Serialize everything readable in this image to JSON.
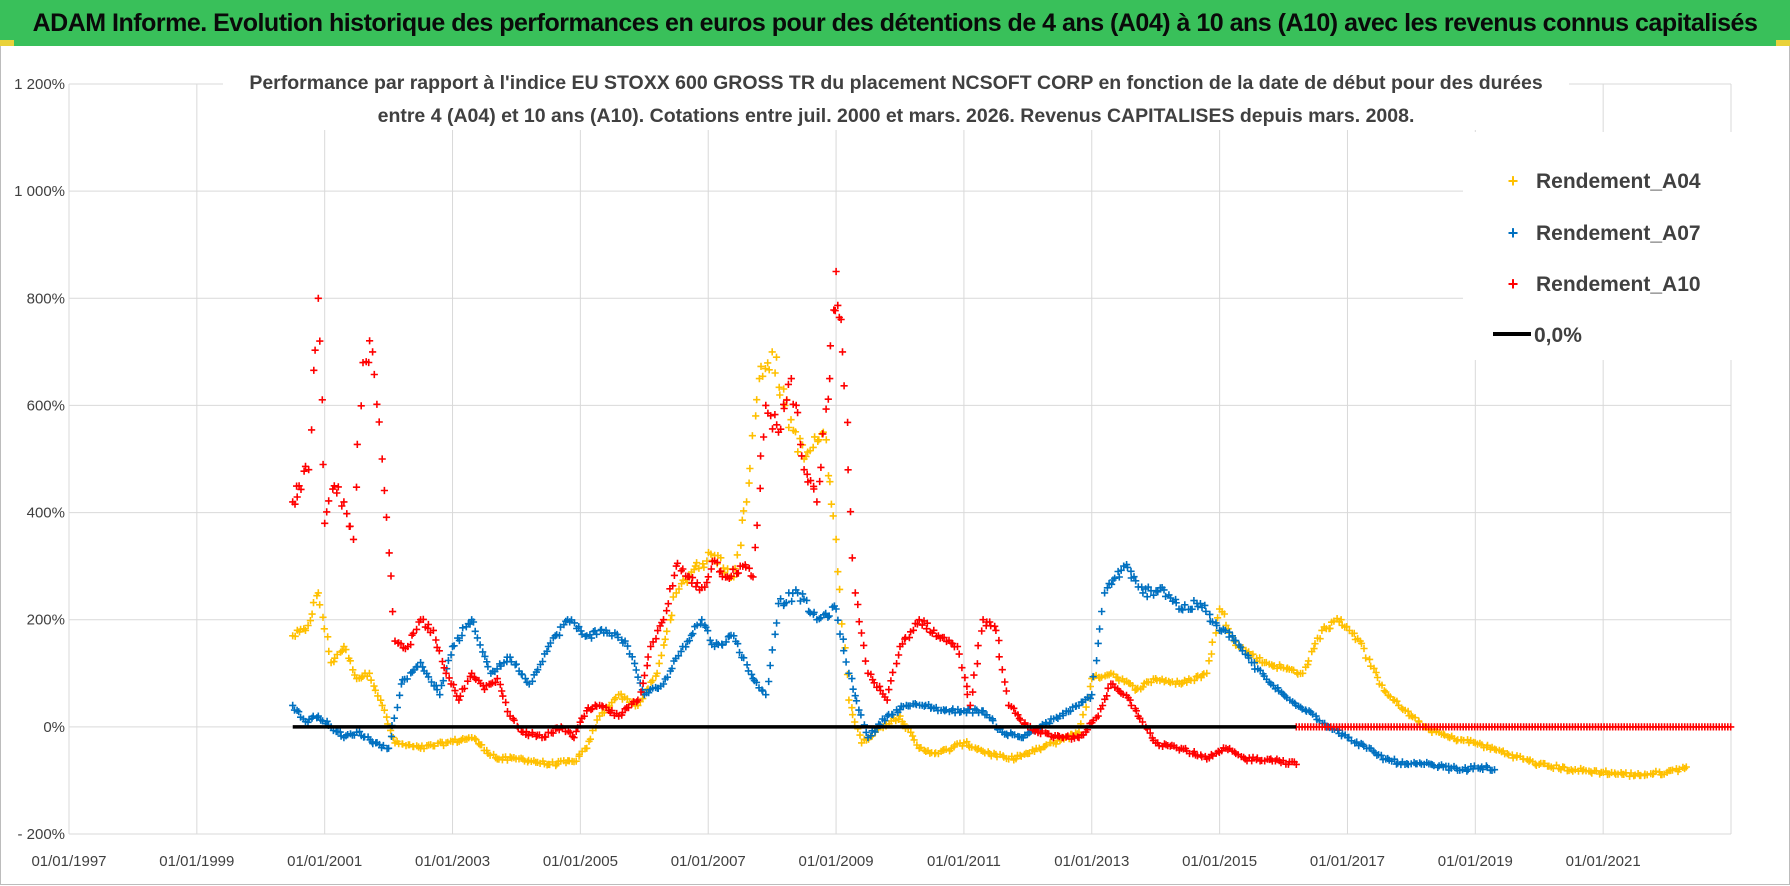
{
  "header": {
    "title": "ADAM Informe. Evolution historique des performances en euros pour des détentions de 4 ans (A04) à 10 ans (A10) avec les revenus connus capitalisés"
  },
  "colors": {
    "banner": "#39c05a",
    "A04": "#ffc000",
    "A07": "#0070c0",
    "A10": "#ff0000",
    "zero": "#000000",
    "grid": "#d9d9d9"
  },
  "chart_data": {
    "type": "scatter",
    "title_line1": "Performance par rapport à l'indice EU STOXX 600 GROSS TR  du placement NCSOFT CORP en fonction de la date de début pour des durées",
    "title_line2": "entre 4 (A04) et 10 ans (A10). Cotations entre juil. 2000 et mars. 2026. Revenus CAPITALISES depuis mars. 2008.",
    "xlabel": "",
    "ylabel": "",
    "xlim": [
      1997.0,
      2023.0
    ],
    "ylim": [
      -200,
      1200
    ],
    "y_ticks": [
      -200,
      0,
      200,
      400,
      600,
      800,
      1000,
      1200
    ],
    "y_tick_labels": [
      "- 200%",
      "0%",
      "200%",
      "400%",
      "600%",
      "800%",
      "1 000%",
      "1 200%"
    ],
    "x_ticks": [
      1997,
      1999,
      2001,
      2003,
      2005,
      2007,
      2009,
      2011,
      2013,
      2015,
      2017,
      2019,
      2021
    ],
    "x_tick_labels": [
      "01/01/1997",
      "01/01/1999",
      "01/01/2001",
      "01/01/2003",
      "01/01/2005",
      "01/01/2007",
      "01/01/2009",
      "01/01/2011",
      "01/01/2013",
      "01/01/2015",
      "01/01/2017",
      "01/01/2019",
      "01/01/2021"
    ],
    "legend_position": "top-right",
    "series": [
      {
        "name": "Rendement_A04",
        "color": "#ffc000",
        "x": [
          2000.5,
          2000.7,
          2000.9,
          2001.1,
          2001.3,
          2001.5,
          2001.7,
          2001.9,
          2002.1,
          2002.5,
          2002.9,
          2003.3,
          2003.7,
          2004.1,
          2004.5,
          2004.9,
          2005.1,
          2005.3,
          2005.6,
          2005.9,
          2006.2,
          2006.5,
          2006.8,
          2007.1,
          2007.4,
          2007.6,
          2007.8,
          2008.0,
          2008.2,
          2008.5,
          2008.8,
          2009.0,
          2009.2,
          2009.4,
          2009.7,
          2010.0,
          2010.3,
          2010.6,
          2011.0,
          2011.4,
          2011.7,
          2012.0,
          2012.4,
          2012.8,
          2013.0,
          2013.3,
          2013.7,
          2014.0,
          2014.4,
          2014.8,
          2015.0,
          2015.3,
          2015.7,
          2016.0,
          2016.3,
          2016.6,
          2016.9,
          2017.2,
          2017.5,
          2017.8,
          2018.2,
          2018.6,
          2019.0,
          2019.5,
          2020.0,
          2020.5,
          2021.0,
          2021.5,
          2022.0,
          2022.3
        ],
        "y": [
          170,
          180,
          250,
          120,
          150,
          90,
          100,
          40,
          -30,
          -40,
          -30,
          -20,
          -60,
          -60,
          -70,
          -65,
          -40,
          20,
          60,
          40,
          100,
          250,
          300,
          320,
          280,
          420,
          650,
          700,
          600,
          500,
          550,
          350,
          50,
          -30,
          0,
          20,
          -40,
          -50,
          -30,
          -50,
          -60,
          -50,
          -30,
          -10,
          90,
          100,
          70,
          90,
          80,
          100,
          220,
          150,
          120,
          110,
          100,
          180,
          200,
          160,
          80,
          40,
          0,
          -20,
          -30,
          -50,
          -70,
          -80,
          -85,
          -90,
          -85,
          -75
        ]
      },
      {
        "name": "Rendement_A07",
        "color": "#0070c0",
        "x": [
          2000.5,
          2000.7,
          2000.9,
          2001.1,
          2001.3,
          2001.5,
          2001.8,
          2002.0,
          2002.2,
          2002.5,
          2002.8,
          2003.0,
          2003.3,
          2003.6,
          2003.9,
          2004.2,
          2004.5,
          2004.8,
          2005.1,
          2005.4,
          2005.7,
          2006.0,
          2006.3,
          2006.6,
          2006.9,
          2007.1,
          2007.4,
          2007.7,
          2007.9,
          2008.1,
          2008.4,
          2008.7,
          2009.0,
          2009.2,
          2009.5,
          2009.8,
          2010.1,
          2010.4,
          2010.7,
          2011.0,
          2011.3,
          2011.6,
          2011.9,
          2012.2,
          2012.5,
          2012.8,
          2013.0,
          2013.2,
          2013.5,
          2013.8,
          2014.1,
          2014.4,
          2014.7,
          2015.0,
          2015.2,
          2015.5,
          2015.8,
          2016.1,
          2016.4,
          2016.7,
          2017.0,
          2017.3,
          2017.6,
          2017.9,
          2018.2,
          2018.5,
          2018.8,
          2019.1,
          2019.3
        ],
        "y": [
          40,
          10,
          20,
          0,
          -20,
          -10,
          -30,
          -40,
          80,
          120,
          60,
          150,
          200,
          100,
          130,
          80,
          150,
          200,
          170,
          180,
          160,
          60,
          80,
          150,
          200,
          150,
          170,
          90,
          60,
          230,
          250,
          200,
          220,
          100,
          -20,
          20,
          40,
          40,
          30,
          30,
          30,
          -10,
          -20,
          0,
          20,
          40,
          60,
          250,
          300,
          250,
          260,
          220,
          230,
          180,
          170,
          120,
          80,
          50,
          30,
          0,
          -20,
          -40,
          -60,
          -70,
          -70,
          -75,
          -80,
          -75,
          -80
        ]
      },
      {
        "name": "Rendement_A10",
        "color": "#ff0000",
        "x": [
          2000.5,
          2000.6,
          2000.75,
          2000.9,
          2001.0,
          2001.15,
          2001.3,
          2001.45,
          2001.6,
          2001.75,
          2001.9,
          2002.1,
          2002.3,
          2002.5,
          2002.7,
          2002.9,
          2003.1,
          2003.3,
          2003.5,
          2003.7,
          2003.9,
          2004.1,
          2004.4,
          2004.7,
          2004.9,
          2005.1,
          2005.3,
          2005.6,
          2005.9,
          2006.1,
          2006.3,
          2006.5,
          2006.7,
          2006.9,
          2007.1,
          2007.3,
          2007.5,
          2007.7,
          2007.9,
          2008.1,
          2008.3,
          2008.5,
          2008.7,
          2008.9,
          2009.0,
          2009.1,
          2009.3,
          2009.5,
          2009.8,
          2010.0,
          2010.3,
          2010.6,
          2010.9,
          2011.1,
          2011.3,
          2011.5,
          2011.7,
          2012.0,
          2012.4,
          2012.8,
          2013.1,
          2013.3,
          2013.6,
          2014.0,
          2014.4,
          2014.8,
          2015.1,
          2015.4,
          2015.8,
          2016.2
        ],
        "y": [
          420,
          450,
          480,
          800,
          380,
          450,
          420,
          350,
          680,
          700,
          500,
          160,
          150,
          200,
          180,
          100,
          50,
          100,
          70,
          90,
          20,
          -10,
          -20,
          0,
          -20,
          30,
          40,
          20,
          50,
          150,
          200,
          300,
          280,
          260,
          310,
          280,
          300,
          280,
          600,
          550,
          650,
          480,
          420,
          650,
          850,
          700,
          250,
          100,
          50,
          150,
          200,
          170,
          150,
          40,
          200,
          180,
          40,
          0,
          -20,
          -20,
          20,
          80,
          50,
          -30,
          -40,
          -60,
          -40,
          -60,
          -60,
          -70
        ]
      }
    ],
    "zero_line": {
      "name": "0,0%",
      "color": "#000000",
      "x_range": [
        2000.5,
        2016.2
      ]
    },
    "a10_flat": {
      "name": "Rendement_A10",
      "color": "#ff0000",
      "x_range": [
        2016.2,
        2023.0
      ],
      "value": 0
    }
  }
}
